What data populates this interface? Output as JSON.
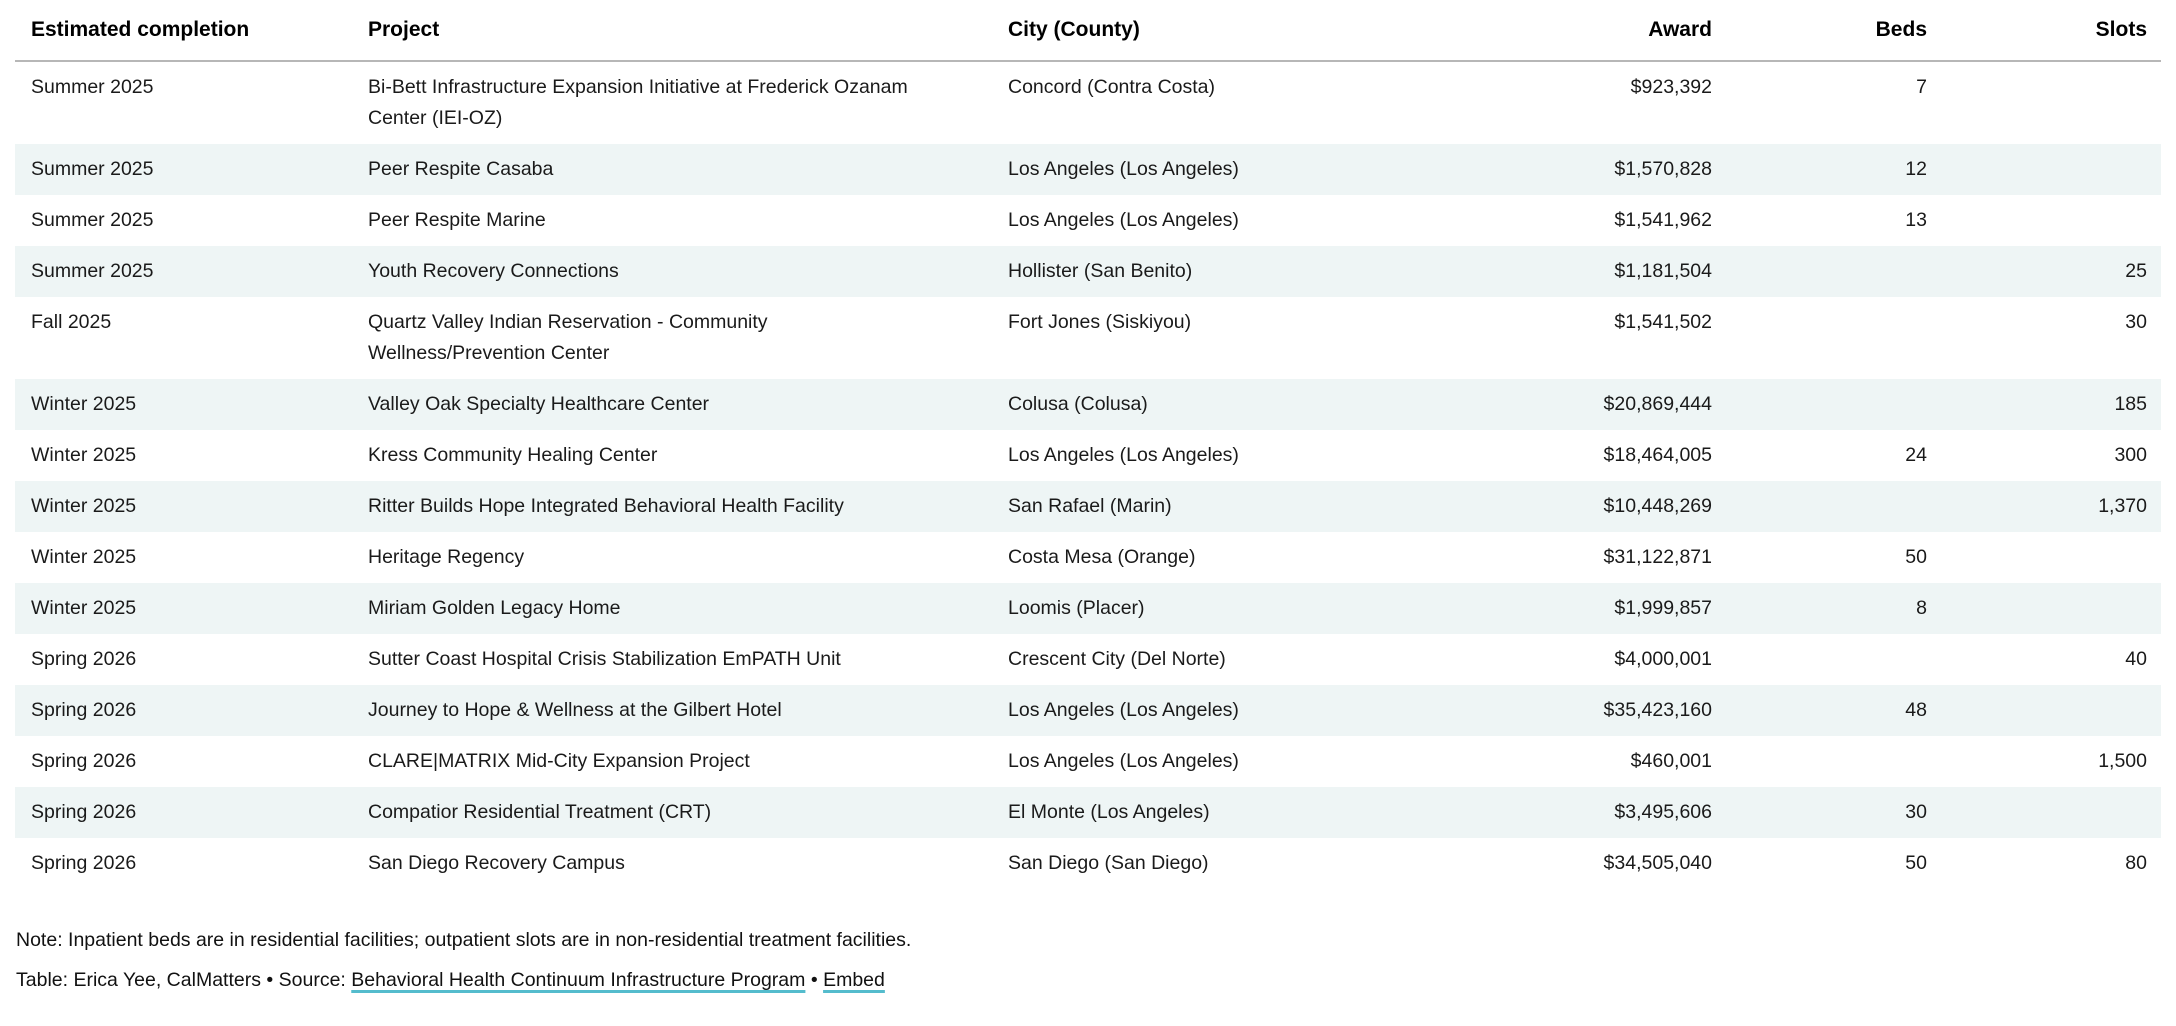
{
  "chart_data": {
    "type": "table",
    "columns": [
      {
        "label": "Estimated completion",
        "align": "left"
      },
      {
        "label": "Project",
        "align": "left"
      },
      {
        "label": "City (County)",
        "align": "left"
      },
      {
        "label": "Award",
        "align": "right"
      },
      {
        "label": "Beds",
        "align": "right"
      },
      {
        "label": "Slots",
        "align": "right"
      }
    ],
    "rows": [
      [
        "Summer 2025",
        "Bi-Bett Infrastructure Expansion Initiative at Frederick Ozanam Center (IEI-OZ)",
        "Concord (Contra Costa)",
        "$923,392",
        "7",
        ""
      ],
      [
        "Summer 2025",
        "Peer Respite Casaba",
        "Los Angeles (Los Angeles)",
        "$1,570,828",
        "12",
        ""
      ],
      [
        "Summer 2025",
        "Peer Respite Marine",
        "Los Angeles (Los Angeles)",
        "$1,541,962",
        "13",
        ""
      ],
      [
        "Summer 2025",
        "Youth Recovery Connections",
        "Hollister (San Benito)",
        "$1,181,504",
        "",
        "25"
      ],
      [
        "Fall 2025",
        "Quartz Valley Indian Reservation - Community Wellness/Prevention Center",
        "Fort Jones (Siskiyou)",
        "$1,541,502",
        "",
        "30"
      ],
      [
        "Winter 2025",
        "Valley Oak Specialty Healthcare Center",
        "Colusa (Colusa)",
        "$20,869,444",
        "",
        "185"
      ],
      [
        "Winter 2025",
        "Kress Community Healing Center",
        "Los Angeles (Los Angeles)",
        "$18,464,005",
        "24",
        "300"
      ],
      [
        "Winter 2025",
        "Ritter Builds Hope Integrated Behavioral Health Facility",
        "San Rafael (Marin)",
        "$10,448,269",
        "",
        "1,370"
      ],
      [
        "Winter 2025",
        "Heritage Regency",
        "Costa Mesa (Orange)",
        "$31,122,871",
        "50",
        ""
      ],
      [
        "Winter 2025",
        "Miriam Golden Legacy Home",
        "Loomis (Placer)",
        "$1,999,857",
        "8",
        ""
      ],
      [
        "Spring 2026",
        "Sutter Coast Hospital Crisis Stabilization EmPATH Unit",
        "Crescent City (Del Norte)",
        "$4,000,001",
        "",
        "40"
      ],
      [
        "Spring 2026",
        "Journey to Hope & Wellness at the Gilbert Hotel",
        "Los Angeles (Los Angeles)",
        "$35,423,160",
        "48",
        ""
      ],
      [
        "Spring 2026",
        "CLARE|MATRIX Mid-City Expansion Project",
        "Los Angeles (Los Angeles)",
        "$460,001",
        "",
        "1,500"
      ],
      [
        "Spring 2026",
        "Compatior Residential Treatment (CRT)",
        "El Monte (Los Angeles)",
        "$3,495,606",
        "30",
        ""
      ],
      [
        "Spring 2026",
        "San Diego Recovery Campus",
        "San Diego (San Diego)",
        "$34,505,040",
        "50",
        "80"
      ]
    ],
    "layout": {
      "zebra_striping": true,
      "stripe_color": "#eef5f5",
      "header_rule_color": "#b7b7b7"
    }
  },
  "footer": {
    "note": "Note: Inpatient beds are in residential facilities; outpatient slots are in non-residential treatment facilities.",
    "credit": "Table: Erica Yee, CalMatters",
    "separator": "•",
    "source_label": "Source:",
    "source_link": "Behavioral Health Continuum Infrastructure Program",
    "embed_label": "Embed"
  },
  "colors": {
    "text": "#1a1a1a",
    "link_underline": "#54bccd"
  }
}
